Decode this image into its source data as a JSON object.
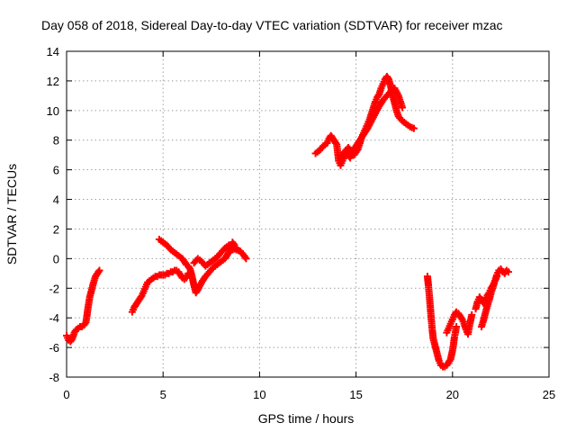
{
  "chart_data": {
    "type": "scatter",
    "title": "Day 058 of 2018, Sidereal Day-to-day VTEC variation (SDTVAR) for receiver mzac",
    "xlabel": "GPS time / hours",
    "ylabel": "SDTVAR / TECUs",
    "xlim": [
      0,
      25
    ],
    "ylim": [
      -8,
      14
    ],
    "xticks": [
      "0",
      "5",
      "10",
      "15",
      "20",
      "25"
    ],
    "yticks": [
      "-8",
      "-6",
      "-4",
      "-2",
      "0",
      "2",
      "4",
      "6",
      "8",
      "10",
      "12",
      "14"
    ],
    "grid": true,
    "marker": "plus",
    "color": "#ff0000",
    "series": [
      {
        "name": "SDTVAR",
        "segments": [
          [
            [
              0.0,
              -5.2
            ],
            [
              0.1,
              -5.5
            ],
            [
              0.2,
              -5.6
            ],
            [
              0.3,
              -5.4
            ],
            [
              0.4,
              -5.0
            ],
            [
              0.5,
              -4.8
            ],
            [
              0.6,
              -4.7
            ],
            [
              0.7,
              -4.6
            ],
            [
              0.8,
              -4.6
            ],
            [
              0.9,
              -4.5
            ],
            [
              1.0,
              -4.3
            ],
            [
              1.05,
              -3.9
            ],
            [
              1.1,
              -3.4
            ],
            [
              1.15,
              -3.0
            ],
            [
              1.2,
              -2.6
            ],
            [
              1.3,
              -2.1
            ],
            [
              1.4,
              -1.6
            ],
            [
              1.5,
              -1.2
            ],
            [
              1.6,
              -1.0
            ],
            [
              1.7,
              -0.8
            ]
          ],
          [
            [
              3.4,
              -3.6
            ],
            [
              3.5,
              -3.3
            ],
            [
              3.6,
              -3.1
            ],
            [
              3.7,
              -2.9
            ],
            [
              3.8,
              -2.7
            ],
            [
              3.9,
              -2.5
            ],
            [
              4.0,
              -2.2
            ],
            [
              4.1,
              -1.9
            ],
            [
              4.2,
              -1.6
            ],
            [
              4.3,
              -1.5
            ],
            [
              4.4,
              -1.4
            ],
            [
              4.5,
              -1.3
            ],
            [
              4.6,
              -1.2
            ],
            [
              4.7,
              -1.2
            ],
            [
              4.8,
              -1.1
            ],
            [
              4.9,
              -1.1
            ],
            [
              5.0,
              -1.1
            ],
            [
              5.1,
              -1.1
            ],
            [
              5.2,
              -1.0
            ],
            [
              5.3,
              -1.0
            ],
            [
              5.4,
              -0.9
            ],
            [
              5.5,
              -0.9
            ],
            [
              5.6,
              -0.8
            ],
            [
              5.7,
              -0.8
            ],
            [
              5.8,
              -0.9
            ],
            [
              5.9,
              -1.1
            ],
            [
              6.0,
              -1.3
            ],
            [
              6.1,
              -1.4
            ],
            [
              6.2,
              -1.3
            ],
            [
              6.3,
              -1.0
            ]
          ],
          [
            [
              4.8,
              1.3
            ],
            [
              5.0,
              1.1
            ],
            [
              5.2,
              0.9
            ],
            [
              5.4,
              0.6
            ],
            [
              5.6,
              0.4
            ],
            [
              5.8,
              0.2
            ],
            [
              6.0,
              0.0
            ],
            [
              6.1,
              -0.2
            ],
            [
              6.2,
              -0.4
            ],
            [
              6.3,
              -0.5
            ],
            [
              6.4,
              -0.7
            ],
            [
              6.5,
              -1.2
            ],
            [
              6.6,
              -1.8
            ],
            [
              6.7,
              -2.3
            ],
            [
              6.8,
              -2.1
            ],
            [
              7.0,
              -1.6
            ],
            [
              7.2,
              -1.2
            ],
            [
              7.4,
              -0.9
            ],
            [
              7.6,
              -0.6
            ],
            [
              7.8,
              -0.4
            ],
            [
              8.0,
              -0.2
            ],
            [
              8.2,
              0.0
            ],
            [
              8.4,
              0.4
            ],
            [
              8.5,
              0.8
            ],
            [
              8.6,
              1.1
            ],
            [
              8.7,
              0.9
            ],
            [
              8.8,
              0.6
            ],
            [
              9.0,
              0.5
            ],
            [
              9.2,
              0.2
            ],
            [
              9.3,
              0.0
            ]
          ],
          [
            [
              6.6,
              -0.3
            ],
            [
              6.8,
              0.0
            ],
            [
              7.0,
              -0.2
            ],
            [
              7.2,
              -0.5
            ],
            [
              7.4,
              -0.3
            ],
            [
              7.6,
              -0.1
            ],
            [
              7.8,
              0.1
            ],
            [
              8.0,
              0.4
            ],
            [
              8.2,
              0.7
            ],
            [
              8.4,
              0.9
            ],
            [
              8.6,
              0.6
            ],
            [
              8.8,
              0.7
            ]
          ],
          [
            [
              12.9,
              7.1
            ],
            [
              13.1,
              7.3
            ],
            [
              13.3,
              7.6
            ],
            [
              13.5,
              7.8
            ],
            [
              13.6,
              8.1
            ],
            [
              13.7,
              8.3
            ],
            [
              13.8,
              8.1
            ],
            [
              13.9,
              7.9
            ],
            [
              14.0,
              7.7
            ],
            [
              14.1,
              6.6
            ],
            [
              14.2,
              6.3
            ],
            [
              14.3,
              6.6
            ],
            [
              14.4,
              6.9
            ],
            [
              14.5,
              7.1
            ],
            [
              14.6,
              7.0
            ],
            [
              14.7,
              6.8
            ],
            [
              14.8,
              7.1
            ],
            [
              14.9,
              7.0
            ],
            [
              15.0,
              7.2
            ],
            [
              15.1,
              7.4
            ],
            [
              15.2,
              7.8
            ],
            [
              15.3,
              8.2
            ],
            [
              15.4,
              8.5
            ],
            [
              15.5,
              8.8
            ],
            [
              15.6,
              9.1
            ],
            [
              15.7,
              9.4
            ],
            [
              15.8,
              9.8
            ],
            [
              15.9,
              10.2
            ],
            [
              16.0,
              10.6
            ],
            [
              16.1,
              10.9
            ],
            [
              16.2,
              11.1
            ],
            [
              16.3,
              11.5
            ],
            [
              16.4,
              11.8
            ],
            [
              16.5,
              12.1
            ],
            [
              16.6,
              12.3
            ],
            [
              16.7,
              12.1
            ],
            [
              16.8,
              11.6
            ],
            [
              16.9,
              11.0
            ],
            [
              17.0,
              10.5
            ],
            [
              17.1,
              10.0
            ],
            [
              17.2,
              9.6
            ],
            [
              17.4,
              9.3
            ],
            [
              17.6,
              9.1
            ],
            [
              17.8,
              8.9
            ],
            [
              18.0,
              8.8
            ]
          ],
          [
            [
              14.2,
              6.8
            ],
            [
              14.4,
              7.2
            ],
            [
              14.6,
              7.5
            ],
            [
              14.8,
              7.2
            ],
            [
              15.0,
              7.6
            ],
            [
              15.2,
              8.0
            ],
            [
              15.4,
              8.4
            ],
            [
              15.6,
              8.8
            ],
            [
              15.8,
              9.3
            ],
            [
              16.0,
              9.8
            ],
            [
              16.2,
              10.3
            ],
            [
              16.4,
              10.7
            ],
            [
              16.6,
              11.0
            ],
            [
              16.8,
              11.3
            ],
            [
              17.0,
              11.5
            ],
            [
              17.2,
              11.0
            ],
            [
              17.4,
              10.2
            ]
          ],
          [
            [
              18.7,
              -1.2
            ],
            [
              18.75,
              -1.8
            ],
            [
              18.8,
              -2.5
            ],
            [
              18.85,
              -3.3
            ],
            [
              18.9,
              -4.1
            ],
            [
              18.95,
              -4.8
            ],
            [
              19.0,
              -5.4
            ],
            [
              19.1,
              -5.9
            ],
            [
              19.2,
              -6.4
            ],
            [
              19.3,
              -6.9
            ],
            [
              19.4,
              -7.2
            ],
            [
              19.5,
              -7.3
            ],
            [
              19.6,
              -7.3
            ],
            [
              19.7,
              -7.2
            ],
            [
              19.8,
              -7.0
            ],
            [
              19.9,
              -6.8
            ],
            [
              20.0,
              -6.2
            ],
            [
              20.05,
              -5.8
            ],
            [
              20.1,
              -5.3
            ],
            [
              20.15,
              -5.0
            ],
            [
              20.2,
              -4.6
            ]
          ],
          [
            [
              19.7,
              -5.0
            ],
            [
              19.8,
              -4.7
            ],
            [
              19.9,
              -4.4
            ],
            [
              20.0,
              -4.1
            ],
            [
              20.1,
              -3.8
            ],
            [
              20.2,
              -3.6
            ],
            [
              20.3,
              -3.7
            ],
            [
              20.4,
              -3.9
            ],
            [
              20.5,
              -4.1
            ],
            [
              20.6,
              -4.4
            ],
            [
              20.7,
              -4.8
            ],
            [
              20.8,
              -5.1
            ],
            [
              20.9,
              -4.4
            ],
            [
              21.0,
              -3.8
            ]
          ],
          [
            [
              21.2,
              -3.4
            ],
            [
              21.3,
              -2.9
            ],
            [
              21.4,
              -2.6
            ],
            [
              21.5,
              -2.8
            ],
            [
              21.6,
              -3.0
            ],
            [
              21.7,
              -2.8
            ],
            [
              21.8,
              -2.5
            ],
            [
              21.9,
              -2.3
            ],
            [
              22.0,
              -2.0
            ],
            [
              22.1,
              -1.8
            ],
            [
              22.2,
              -1.5
            ],
            [
              22.3,
              -1.1
            ],
            [
              22.4,
              -0.8
            ],
            [
              22.5,
              -0.7
            ],
            [
              22.6,
              -0.9
            ],
            [
              22.7,
              -1.0
            ],
            [
              22.8,
              -0.8
            ],
            [
              22.9,
              -0.9
            ]
          ],
          [
            [
              21.5,
              -4.6
            ],
            [
              21.6,
              -4.2
            ],
            [
              21.7,
              -3.7
            ],
            [
              21.8,
              -3.2
            ],
            [
              21.9,
              -2.8
            ],
            [
              22.0,
              -2.3
            ],
            [
              22.1,
              -1.9
            ],
            [
              22.2,
              -1.5
            ],
            [
              22.3,
              -1.2
            ]
          ]
        ]
      }
    ]
  }
}
